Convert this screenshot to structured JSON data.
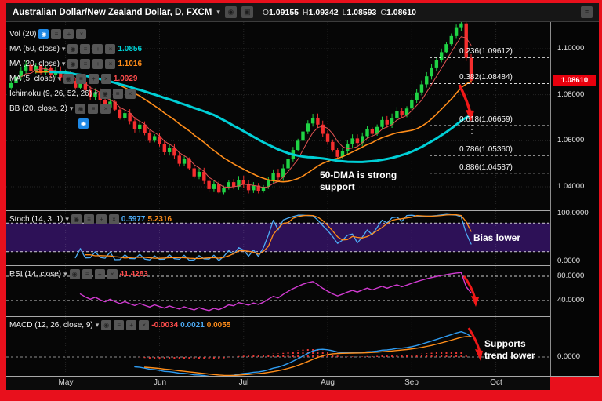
{
  "icons": {
    "dropdown": "▾",
    "eye": "◉",
    "settings": "≡",
    "add": "+",
    "close": "×",
    "camera": "▣"
  },
  "toolbar": {
    "title": "Australian Dollar/New Zealand Dollar, D, FXCM",
    "ohlc": {
      "o_label": "O",
      "o": "1.09155",
      "h_label": "H",
      "h": "1.09342",
      "l_label": "L",
      "l": "1.08593",
      "c_label": "C",
      "c": "1.08610"
    }
  },
  "legend": {
    "vol": {
      "label": "Vol (20)"
    },
    "ma50": {
      "label": "MA (50, close)",
      "value": "1.0856"
    },
    "ma20": {
      "label": "MA (20, close)",
      "value": "1.1016"
    },
    "ma5": {
      "label": "MA (5, close)",
      "value": "1.0929"
    },
    "ichimoku": {
      "label": "Ichimoku (9, 26, 52, 26)"
    },
    "bb": {
      "label": "BB (20, close, 2)"
    }
  },
  "panels": {
    "stoch": {
      "label": "Stoch (14, 3, 1)",
      "k": "0.5977",
      "d": "5.2316"
    },
    "rsi": {
      "label": "RSI (14, close)",
      "value": "41.4283"
    },
    "macd": {
      "label": "MACD (12, 26, close, 9)",
      "hist": "-0.0034",
      "macd": "0.0021",
      "signal": "0.0055"
    }
  },
  "annotations": {
    "main": "50-DMA is strong support",
    "stoch": "Bias lower",
    "macd": "Supports trend lower"
  },
  "fib": [
    {
      "label": "0.236(1.09612)"
    },
    {
      "label": "0.382(1.08484)"
    },
    {
      "label": "0.618(1.06659)"
    },
    {
      "label": "0.786(1.05360)"
    },
    {
      "label": "0.886(1.04587)"
    }
  ],
  "axes": {
    "main_prices": [
      "1.10000",
      "1.08000",
      "1.06000",
      "1.04000"
    ],
    "last_price": "1.08610",
    "stoch": [
      "100.0000",
      "0.0000"
    ],
    "rsi": [
      "80.0000",
      "40.0000"
    ],
    "macd": [
      "0.0000"
    ],
    "months": [
      "May",
      "Jun",
      "Jul",
      "Aug",
      "Sep",
      "Oct"
    ]
  },
  "chart_data": {
    "type": "candlestick",
    "symbol": "AUD/NZD",
    "timeframe": "D",
    "source": "FXCM",
    "ohlc_display": {
      "open": 1.09155,
      "high": 1.09342,
      "low": 1.08593,
      "close": 1.0861
    },
    "closes": [
      1.085,
      1.0878,
      1.0905,
      1.093,
      1.0902,
      1.0925,
      1.0895,
      1.0915,
      1.0885,
      1.0905,
      1.0875,
      1.089,
      1.086,
      1.083,
      1.0855,
      1.082,
      1.079,
      1.081,
      1.0775,
      1.0745,
      1.077,
      1.0735,
      1.07,
      1.072,
      1.0685,
      1.065,
      1.067,
      1.0635,
      1.06,
      1.062,
      1.0585,
      1.055,
      1.057,
      1.0535,
      1.05,
      1.052,
      1.048,
      1.0445,
      1.0465,
      1.0425,
      1.039,
      1.041,
      1.0375,
      1.0395,
      1.042,
      1.04,
      1.043,
      1.041,
      1.0385,
      1.0405,
      1.038,
      1.04,
      1.043,
      1.046,
      1.044,
      1.048,
      1.052,
      1.056,
      1.06,
      1.064,
      1.0675,
      1.07,
      1.067,
      1.063,
      1.0595,
      1.056,
      1.053,
      1.0555,
      1.0585,
      1.061,
      1.059,
      1.062,
      1.065,
      1.063,
      1.066,
      1.069,
      1.067,
      1.07,
      1.073,
      1.071,
      1.074,
      1.0775,
      1.081,
      1.0845,
      1.088,
      1.0915,
      1.095,
      1.0985,
      1.102,
      1.1055,
      1.109,
      1.111,
      1.096,
      1.0861
    ],
    "swing_high": 1.1143,
    "swing_low": 1.0371,
    "months": [
      "May",
      "Jun",
      "Jul",
      "Aug",
      "Sep",
      "Oct"
    ],
    "month_start_indices": [
      11,
      30,
      47,
      64,
      81,
      98
    ],
    "price_axis": [
      1.1,
      1.08,
      1.06,
      1.04
    ],
    "last_price": 1.0861,
    "fib_levels": [
      {
        "ratio": 0.236,
        "price": 1.09612
      },
      {
        "ratio": 0.382,
        "price": 1.08484
      },
      {
        "ratio": 0.618,
        "price": 1.06659
      },
      {
        "ratio": 0.786,
        "price": 1.0536
      },
      {
        "ratio": 0.886,
        "price": 1.04587
      }
    ],
    "overlays": [
      {
        "name": "MA 50",
        "color": "#00cfd6"
      },
      {
        "name": "MA 20",
        "color": "#ff8d1a"
      },
      {
        "name": "MA 5",
        "color": "#e05252"
      }
    ],
    "indicators": {
      "stoch": {
        "params": [
          14,
          3,
          1
        ],
        "k_last": 0.5977,
        "d_last": 5.2316,
        "range": [
          0,
          100
        ],
        "band": [
          20,
          80
        ]
      },
      "rsi": {
        "params": [
          14
        ],
        "last": 41.4283,
        "levels": [
          80,
          40
        ]
      },
      "macd": {
        "params": [
          12,
          26,
          9
        ],
        "hist_last": -0.0034,
        "macd_last": 0.0021,
        "signal_last": 0.0055
      }
    }
  }
}
